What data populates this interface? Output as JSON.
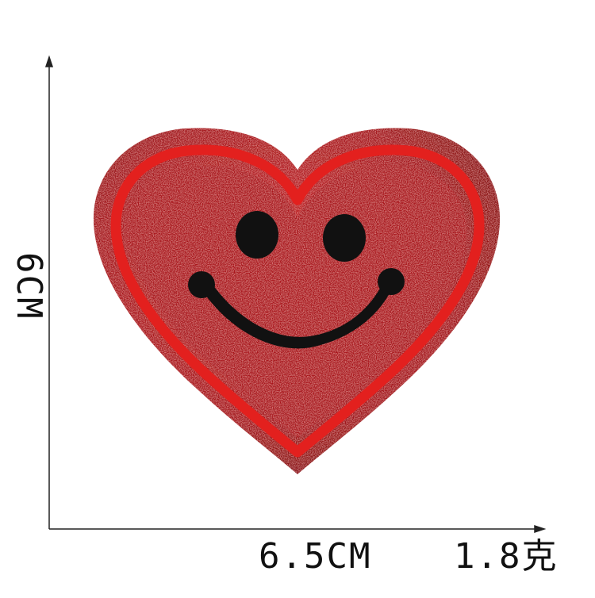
{
  "dimensions": {
    "height_label": "6CM",
    "width_label": "6.5CM",
    "weight_label": "1.8克"
  },
  "product": {
    "subject": "heart-smiley-patch",
    "colors": {
      "glitter": "#b21a1f",
      "border": "#e3201e",
      "face": "#111111",
      "axis": "#222222"
    }
  }
}
